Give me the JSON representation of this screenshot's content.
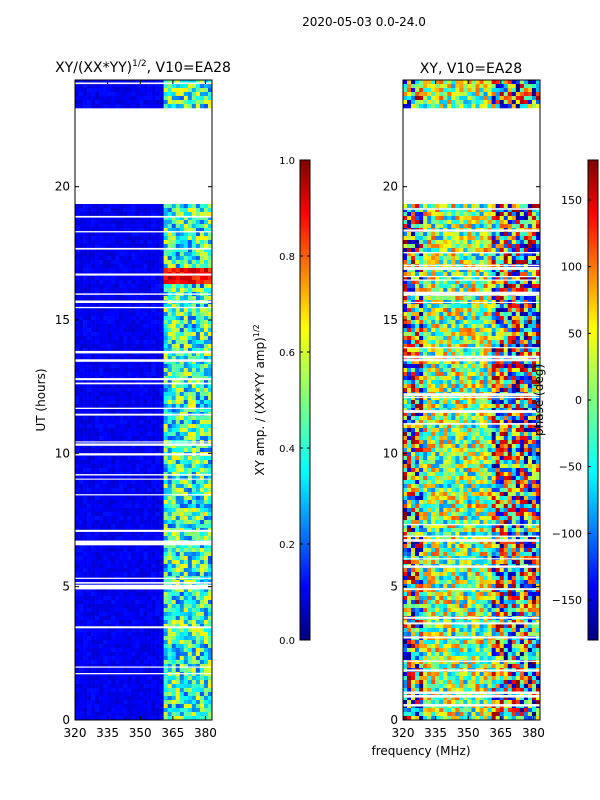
{
  "suptitle": "2020-05-03 0.0-24.0",
  "xlabel_shared": "frequency (MHz)",
  "chart_data": [
    {
      "type": "heatmap",
      "title": "XY/(XX*YY)",
      "title_sup": "1/2",
      "title_suffix": ", V10=EA28",
      "ylabel": "UT (hours)",
      "xlim": [
        320,
        383
      ],
      "ylim": [
        0,
        24
      ],
      "xticks": [
        320,
        335,
        350,
        365,
        380
      ],
      "yticks": [
        0,
        5,
        10,
        15,
        20
      ],
      "colorbar": {
        "label": "XY amp. / (XX*YY amp)",
        "label_sup": "1/2",
        "range": [
          0.0,
          1.0
        ],
        "ticks": [
          "0.0",
          "0.2",
          "0.4",
          "0.6",
          "0.8",
          "1.0"
        ],
        "colormap": "jet"
      }
    },
    {
      "type": "heatmap",
      "title": "XY, V10=EA28",
      "xlim": [
        320,
        383
      ],
      "ylim": [
        0,
        24
      ],
      "xticks": [
        320,
        335,
        350,
        365,
        380
      ],
      "yticks": [
        0,
        5,
        10,
        15,
        20
      ],
      "colorbar": {
        "label": "phase (deg)",
        "range": [
          -180,
          180
        ],
        "ticks": [
          "150",
          "100",
          "50",
          "0",
          "−50",
          "−100",
          "−150"
        ],
        "colormap": "jet"
      }
    }
  ]
}
